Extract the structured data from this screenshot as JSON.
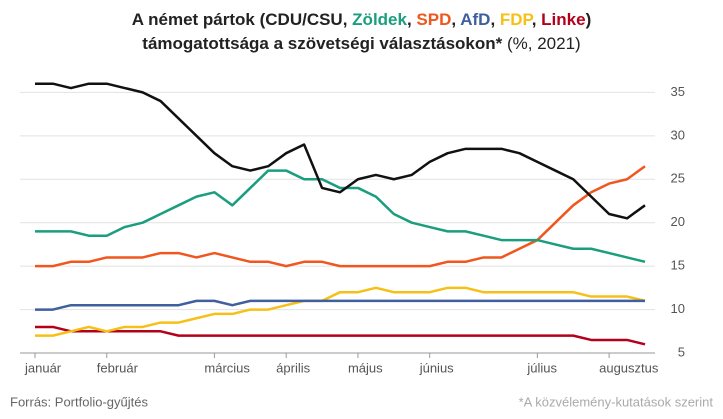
{
  "chart_data": {
    "type": "line",
    "title_prefix": "A német pártok (",
    "title_separator": ", ",
    "title_suffix": ")",
    "subtitle_bold": "támogatottsága a szövetségi választásokon*",
    "subtitle_rest": " (%, 2021)",
    "source": "Forrás: Portfolio-gyűjtés",
    "note": "*A közvélemény-kutatások szerint",
    "categories": [
      "január",
      null,
      null,
      null,
      "február",
      null,
      null,
      null,
      null,
      null,
      "március",
      null,
      null,
      null,
      "április",
      null,
      null,
      null,
      "május",
      null,
      null,
      null,
      "június",
      null,
      null,
      null,
      null,
      null,
      "július",
      null,
      null,
      null,
      "augusztus",
      null,
      null
    ],
    "series": [
      {
        "name": "CDU/CSU",
        "color": "#111111",
        "values": [
          36,
          36,
          35.5,
          36,
          36,
          35.5,
          35,
          34,
          32,
          30,
          28,
          26.5,
          26,
          26.5,
          28,
          29,
          24,
          23.5,
          25,
          25.5,
          25,
          25.5,
          27,
          28,
          28.5,
          28.5,
          28.5,
          28,
          27,
          26,
          25,
          23,
          21,
          20.5,
          22
        ]
      },
      {
        "name": "Zöldek",
        "color": "#1a9e7e",
        "values": [
          19,
          19,
          19,
          18.5,
          18.5,
          19.5,
          20,
          21,
          22,
          23,
          23.5,
          22,
          24,
          26,
          26,
          25,
          25,
          24,
          24,
          23,
          21,
          20,
          19.5,
          19,
          19,
          18.5,
          18,
          18,
          18,
          17.5,
          17,
          17,
          16.5,
          16,
          15.5
        ]
      },
      {
        "name": "SPD",
        "color": "#f0561e",
        "values": [
          15,
          15,
          15.5,
          15.5,
          16,
          16,
          16,
          16.5,
          16.5,
          16,
          16.5,
          16,
          15.5,
          15.5,
          15,
          15.5,
          15.5,
          15,
          15,
          15,
          15,
          15,
          15,
          15.5,
          15.5,
          16,
          16,
          17,
          18,
          20,
          22,
          23.5,
          24.5,
          25,
          26.5
        ]
      },
      {
        "name": "AfD",
        "color": "#3f5f9e",
        "values": [
          10,
          10,
          10.5,
          10.5,
          10.5,
          10.5,
          10.5,
          10.5,
          10.5,
          11,
          11,
          10.5,
          11,
          11,
          11,
          11,
          11,
          11,
          11,
          11,
          11,
          11,
          11,
          11,
          11,
          11,
          11,
          11,
          11,
          11,
          11,
          11,
          11,
          11,
          11
        ]
      },
      {
        "name": "FDP",
        "color": "#f5c118",
        "values": [
          7,
          7,
          7.5,
          8,
          7.5,
          8,
          8,
          8.5,
          8.5,
          9,
          9.5,
          9.5,
          10,
          10,
          10.5,
          11,
          11,
          12,
          12,
          12.5,
          12,
          12,
          12,
          12.5,
          12.5,
          12,
          12,
          12,
          12,
          12,
          12,
          11.5,
          11.5,
          11.5,
          11
        ]
      },
      {
        "name": "Linke",
        "color": "#b3001b",
        "values": [
          8,
          8,
          7.5,
          7.5,
          7.5,
          7.5,
          7.5,
          7.5,
          7,
          7,
          7,
          7,
          7,
          7,
          7,
          7,
          7,
          7,
          7,
          7,
          7,
          7,
          7,
          7,
          7,
          7,
          7,
          7,
          7,
          7,
          7,
          6.5,
          6.5,
          6.5,
          6
        ]
      }
    ],
    "ylim": [
      5,
      37
    ],
    "yticks": [
      5,
      10,
      15,
      20,
      25,
      30,
      35
    ],
    "grid": true
  }
}
